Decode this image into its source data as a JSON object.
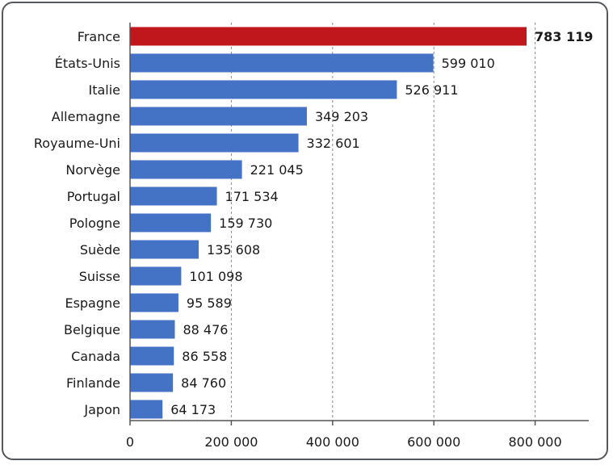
{
  "chart_data": {
    "type": "bar",
    "orientation": "horizontal",
    "title": "",
    "xlabel": "",
    "ylabel": "",
    "categories": [
      "France",
      "États-Unis",
      "Italie",
      "Allemagne",
      "Royaume-Uni",
      "Norvège",
      "Portugal",
      "Pologne",
      "Suède",
      "Suisse",
      "Espagne",
      "Belgique",
      "Canada",
      "Finlande",
      "Japon"
    ],
    "values": [
      783119,
      599010,
      526911,
      349203,
      332601,
      221045,
      171534,
      159730,
      135608,
      101098,
      95589,
      88476,
      86558,
      84760,
      64173
    ],
    "value_labels": [
      "783 119",
      "599 010",
      "526 911",
      "349 203",
      "332 601",
      "221 045",
      "171 534",
      "159 730",
      "135 608",
      "101 098",
      "95 589",
      "88 476",
      "86 558",
      "84 760",
      "64 173"
    ],
    "highlight_index": 0,
    "xlim": [
      0,
      900000
    ],
    "xticks": [
      0,
      200000,
      400000,
      600000,
      800000
    ],
    "xtick_labels": [
      "0",
      "200 000",
      "400 000",
      "600 000",
      "800 000"
    ],
    "grid": "vertical-dashed",
    "legend": "none",
    "colors": {
      "bar": "#4472c4",
      "highlight": "#c0171c",
      "grid": "#8c8c8c",
      "axis": "#555555"
    }
  }
}
